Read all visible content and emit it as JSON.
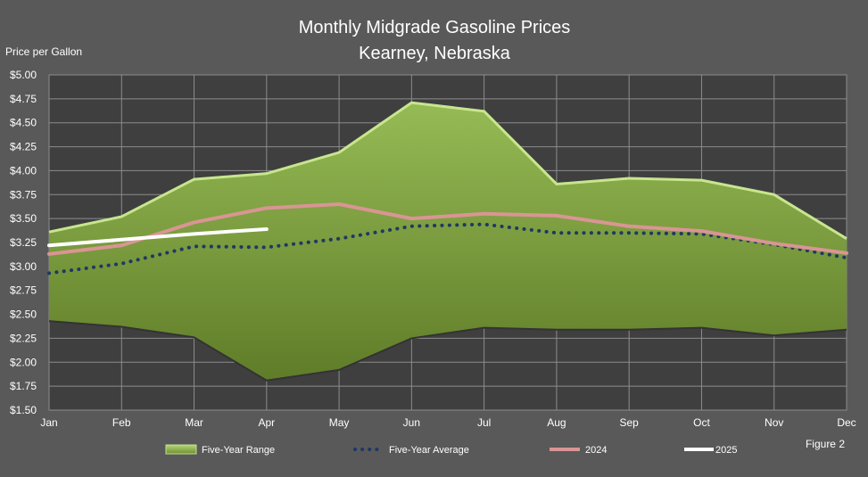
{
  "chart_data": {
    "type": "area",
    "title_line1": "Monthly Midgrade Gasoline Prices",
    "title_line2": "Kearney, Nebraska",
    "ylabel": "Price per Gallon",
    "figure_label": "Figure 2",
    "categories": [
      "Jan",
      "Feb",
      "Mar",
      "Apr",
      "May",
      "Jun",
      "Jul",
      "Aug",
      "Sep",
      "Oct",
      "Nov",
      "Dec"
    ],
    "ylim": [
      1.5,
      5.0
    ],
    "ytick_values": [
      1.5,
      1.75,
      2.0,
      2.25,
      2.5,
      2.75,
      3.0,
      3.25,
      3.5,
      3.75,
      4.0,
      4.25,
      4.5,
      4.75,
      5.0
    ],
    "ytick_labels": [
      "$1.50",
      "$1.75",
      "$2.00",
      "$2.25",
      "$2.50",
      "$2.75",
      "$3.00",
      "$3.25",
      "$3.50",
      "$3.75",
      "$4.00",
      "$4.25",
      "$4.50",
      "$4.75",
      "$5.00"
    ],
    "grid": true,
    "legend_position": "bottom",
    "range": {
      "name": "Five-Year Range",
      "high": [
        3.36,
        3.52,
        3.91,
        3.97,
        4.19,
        4.71,
        4.62,
        3.86,
        3.92,
        3.9,
        3.75,
        3.29
      ],
      "low": [
        2.43,
        2.37,
        2.26,
        1.81,
        1.92,
        2.25,
        2.36,
        2.34,
        2.34,
        2.36,
        2.28,
        2.34
      ],
      "color": "#77933c"
    },
    "series": [
      {
        "name": "Five-Year Average",
        "style": "dotted",
        "color": "#1f3864",
        "values": [
          2.93,
          3.03,
          3.21,
          3.2,
          3.29,
          3.42,
          3.44,
          3.35,
          3.35,
          3.34,
          3.23,
          3.09
        ]
      },
      {
        "name": "2024",
        "style": "solid",
        "color": "#d99594",
        "values": [
          3.13,
          3.22,
          3.46,
          3.61,
          3.65,
          3.5,
          3.55,
          3.53,
          3.42,
          3.37,
          3.24,
          3.14
        ]
      },
      {
        "name": "2025",
        "style": "solid",
        "color": "#ffffff",
        "values": [
          3.22,
          3.28,
          3.34,
          3.39,
          null,
          null,
          null,
          null,
          null,
          null,
          null,
          null
        ]
      }
    ]
  }
}
